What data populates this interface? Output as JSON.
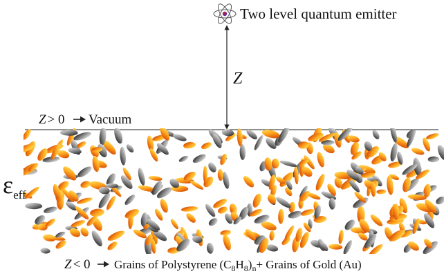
{
  "emitter": {
    "label": "Two level quantum emitter",
    "icon": "atom-icon"
  },
  "distance": {
    "symbol": "Z"
  },
  "upper_region": {
    "condition_var": "Z",
    "condition_op": "> 0",
    "arrow_icon": "right-arrow-icon",
    "medium": "Vacuum"
  },
  "permittivity": {
    "symbol": "ε",
    "subscript": "eff"
  },
  "lower_region": {
    "condition_var": "Z",
    "condition_op": "< 0",
    "arrow_icon": "right-arrow-icon",
    "grains_prefix": "Grains of Polystyrene (C",
    "sub_c": "8",
    "h": "H",
    "sub_h": "8",
    "close": ")",
    "sub_n": "n",
    "plus": "+ Grains of Gold (Au)"
  },
  "colors": {
    "gold_light": "#ffe14a",
    "gold_mid": "#ff9a1a",
    "gold_dark": "#d23a00",
    "gray_light": "#e8e8e8",
    "gray_dark": "#1a1a1a",
    "line": "#222222"
  }
}
